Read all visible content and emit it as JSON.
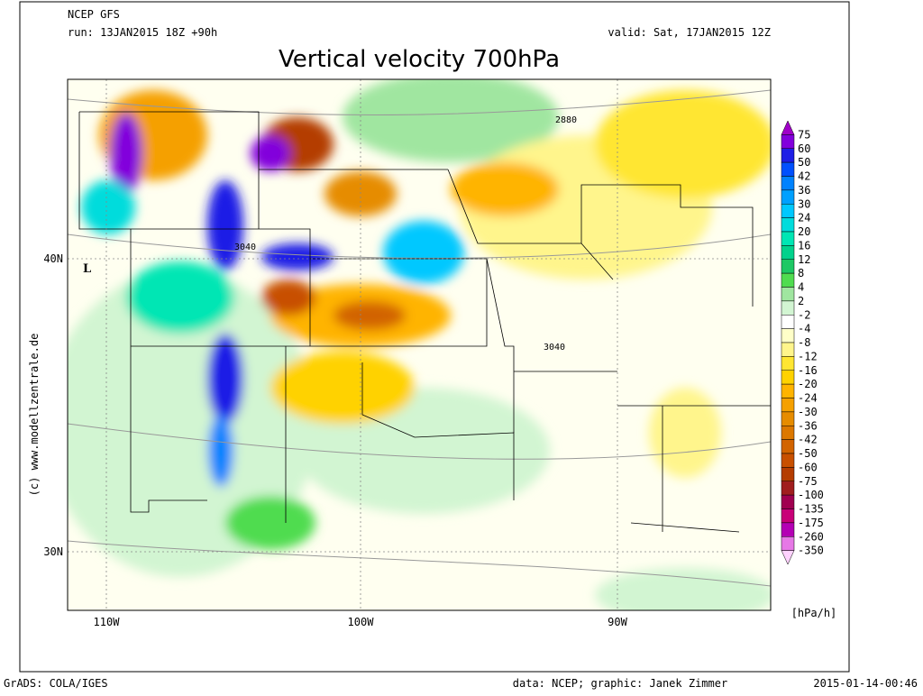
{
  "header": {
    "model": "NCEP GFS",
    "run": "run: 13JAN2015 18Z +90h",
    "valid": "valid: Sat, 17JAN2015 12Z",
    "title": "Vertical velocity 700hPa"
  },
  "map": {
    "lat_labels": [
      "40N",
      "30N"
    ],
    "lon_labels": [
      "110W",
      "100W",
      "90W"
    ],
    "contour_labels": [
      "2880",
      "3040",
      "3040"
    ],
    "low_marker": "L",
    "credit": "(c) www.modellzentrale.de"
  },
  "legend": {
    "levels": [
      "75",
      "60",
      "50",
      "42",
      "36",
      "30",
      "24",
      "20",
      "16",
      "12",
      "8",
      "4",
      "2",
      "-2",
      "-4",
      "-8",
      "-12",
      "-16",
      "-20",
      "-24",
      "-30",
      "-36",
      "-42",
      "-50",
      "-60",
      "-75",
      "-100",
      "-135",
      "-175",
      "-260",
      "-350"
    ],
    "colors": [
      "#a000c8",
      "#8200dc",
      "#1e1ee6",
      "#0050ff",
      "#0082ff",
      "#00a0ff",
      "#00c8ff",
      "#00dcdc",
      "#00e6b4",
      "#00d28c",
      "#1ec864",
      "#50dc50",
      "#a0e6a0",
      "#d2f5d2",
      "#ffffff",
      "#ffffc8",
      "#fff58c",
      "#ffe632",
      "#ffd200",
      "#ffb400",
      "#f5a000",
      "#e68c00",
      "#dc7800",
      "#d26400",
      "#c85000",
      "#b43c00",
      "#a01e1e",
      "#a00050",
      "#c80078",
      "#b400b4",
      "#e678e6",
      "#ffd2ff"
    ],
    "unit": "[hPa/h]"
  },
  "footer": {
    "left": "GrADS: COLA/IGES",
    "center": "data: NCEP; graphic: Janek Zimmer",
    "right": "2015-01-14-00:46"
  }
}
